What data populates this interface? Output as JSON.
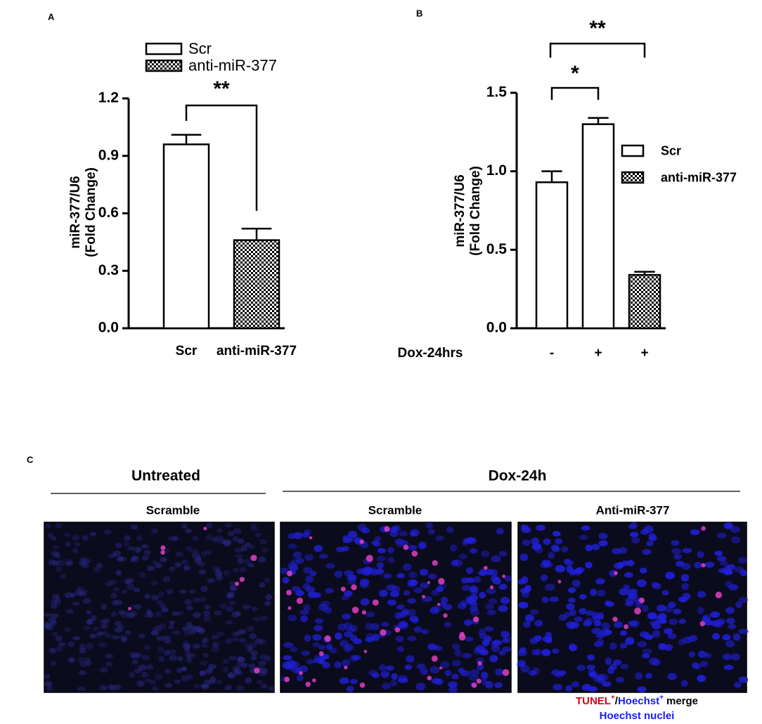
{
  "chart_data": [
    {
      "type": "bar",
      "panel": "A",
      "ylabel": [
        "miR-377/U6",
        "(Fold Change)"
      ],
      "categories": [
        "Scr",
        "anti-miR-377"
      ],
      "series": [
        {
          "name": "Scr",
          "color": "#ffffff",
          "pattern": "open",
          "values": [
            0.96,
            null
          ],
          "errors": [
            0.05,
            null
          ]
        },
        {
          "name": "anti-miR-377",
          "color": "#000000",
          "pattern": "checker",
          "values": [
            null,
            0.46
          ],
          "errors": [
            null,
            0.06
          ]
        }
      ],
      "ylim": [
        0,
        1.2
      ],
      "yticks": [
        {
          "value": 0,
          "label": "0.0"
        },
        0.3,
        0.6,
        0.9,
        1.2
      ],
      "annotations": [
        "**"
      ]
    },
    {
      "type": "bar",
      "panel": "B",
      "ylabel": [
        "miR-377/U6",
        "(Fold Change)"
      ],
      "xlabel": "Dox-24hrs",
      "categories": [
        "-",
        "+",
        "+"
      ],
      "series": [
        {
          "name": "Scr",
          "color": "#ffffff",
          "pattern": "open",
          "values": [
            0.93,
            1.3,
            null
          ],
          "errors": [
            0.07,
            0.04,
            null
          ]
        },
        {
          "name": "anti-miR-377",
          "color": "#000000",
          "pattern": "checker",
          "values": [
            null,
            null,
            0.34
          ],
          "errors": [
            null,
            null,
            0.02
          ]
        }
      ],
      "ylim": [
        0,
        1.5
      ],
      "yticks": [
        {
          "value": 0,
          "label": "0.0"
        },
        0.5,
        {
          "value": 1,
          "label": "1.0"
        },
        1.5
      ],
      "annotations": [
        "*",
        "**"
      ]
    }
  ],
  "panel_c": {
    "label": "C",
    "groups": [
      "Untreated",
      "Dox-24h"
    ],
    "images": [
      "Scramble",
      "Scramble",
      "Anti-miR-377"
    ],
    "caption": {
      "tunel": "TUNEL",
      "sup1": "+",
      "slash": "/",
      "hoechst": "Hoechst",
      "sup2": "+",
      "merge": "merge",
      "line2": "Hoechst nuclei"
    }
  }
}
